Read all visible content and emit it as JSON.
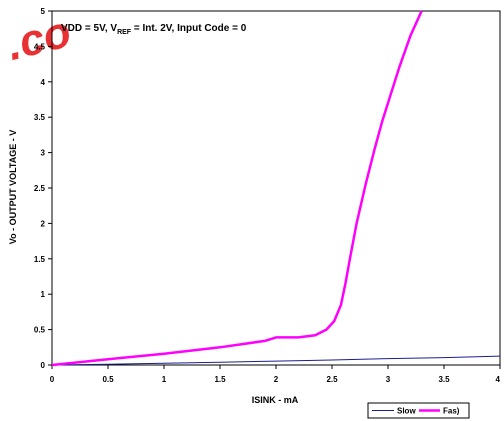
{
  "chart_data": {
    "type": "line",
    "title": "",
    "annotation": {
      "part1": "VDD = 5V, V",
      "subscript": "REF",
      "part2": " = Int. 2V, Input Code = 0"
    },
    "xlabel": "ISINK - mA",
    "ylabel": "Vo - OUTPUT VOLTAGE - V",
    "xlim": [
      0,
      4
    ],
    "ylim": [
      0,
      5
    ],
    "xticks": [
      "0",
      "0.5",
      "1",
      "1.5",
      "2",
      "2.5",
      "3",
      "3.5",
      "4"
    ],
    "yticks": [
      "0",
      "0.5",
      "1",
      "1.5",
      "2",
      "2.5",
      "3",
      "3.5",
      "4",
      "4.5",
      "5"
    ],
    "grid": false,
    "legend_position": "bottom-right",
    "series": [
      {
        "name": "Slow",
        "color": "#1b1f8f",
        "x": [
          0,
          0.5,
          1,
          1.5,
          2,
          2.5,
          3,
          3.5,
          4
        ],
        "y": [
          0,
          0.012,
          0.025,
          0.04,
          0.055,
          0.07,
          0.09,
          0.105,
          0.125
        ]
      },
      {
        "name": "Fas)",
        "color": "#ff00ff",
        "x": [
          0,
          0.5,
          1,
          1.5,
          1.9,
          2.0,
          2.2,
          2.35,
          2.45,
          2.52,
          2.58,
          2.62,
          2.66,
          2.72,
          2.8,
          2.88,
          2.95,
          3.02,
          3.1,
          3.2,
          3.3
        ],
        "y": [
          0,
          0.08,
          0.16,
          0.25,
          0.34,
          0.39,
          0.39,
          0.42,
          0.5,
          0.62,
          0.85,
          1.15,
          1.5,
          2.0,
          2.55,
          3.05,
          3.45,
          3.8,
          4.2,
          4.65,
          5.0
        ]
      }
    ]
  },
  "watermark": {
    "text": ".co",
    "color": "#e8262a"
  }
}
